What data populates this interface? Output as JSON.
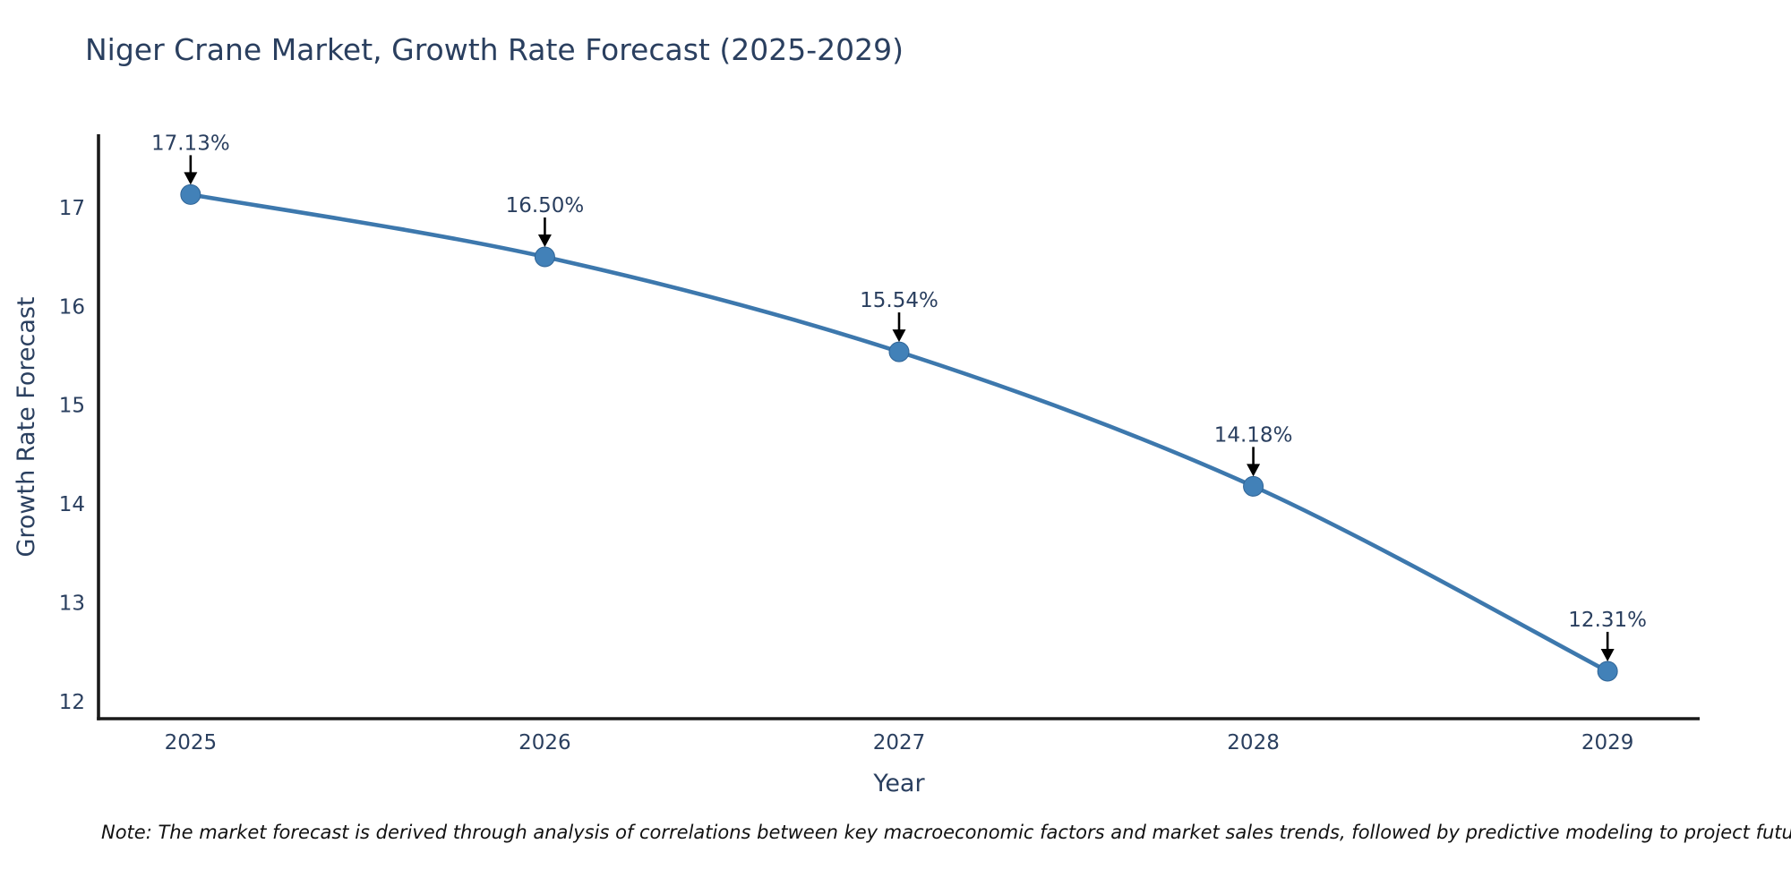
{
  "chart_data": {
    "type": "line",
    "title": "Niger Crane Market, Growth Rate Forecast (2025-2029)",
    "xlabel": "Year",
    "ylabel": "Growth Rate Forecast",
    "categories": [
      2025,
      2026,
      2027,
      2028,
      2029
    ],
    "values": [
      17.13,
      16.5,
      15.54,
      14.18,
      12.31
    ],
    "point_labels": [
      "17.13%",
      "16.50%",
      "15.54%",
      "14.18%",
      "12.31%"
    ],
    "xticks": [
      "2025",
      "2026",
      "2027",
      "2028",
      "2029"
    ],
    "yticks": [
      12,
      13,
      14,
      15,
      16,
      17
    ],
    "xlim": [
      2024.74,
      2029.26
    ],
    "ylim": [
      11.83,
      17.74
    ],
    "grid": false,
    "legend": "none",
    "colors": {
      "line": "#3d78ad",
      "marker": "#4281b8",
      "marker_edge": "#2f6496",
      "axis": "#1a1a1a",
      "text": "#2a3f5f",
      "arrow": "#000000"
    }
  },
  "note": "Note: The market forecast is derived through analysis of correlations between key macroeconomic factors and market sales trends, followed by predictive modeling to project future sales"
}
